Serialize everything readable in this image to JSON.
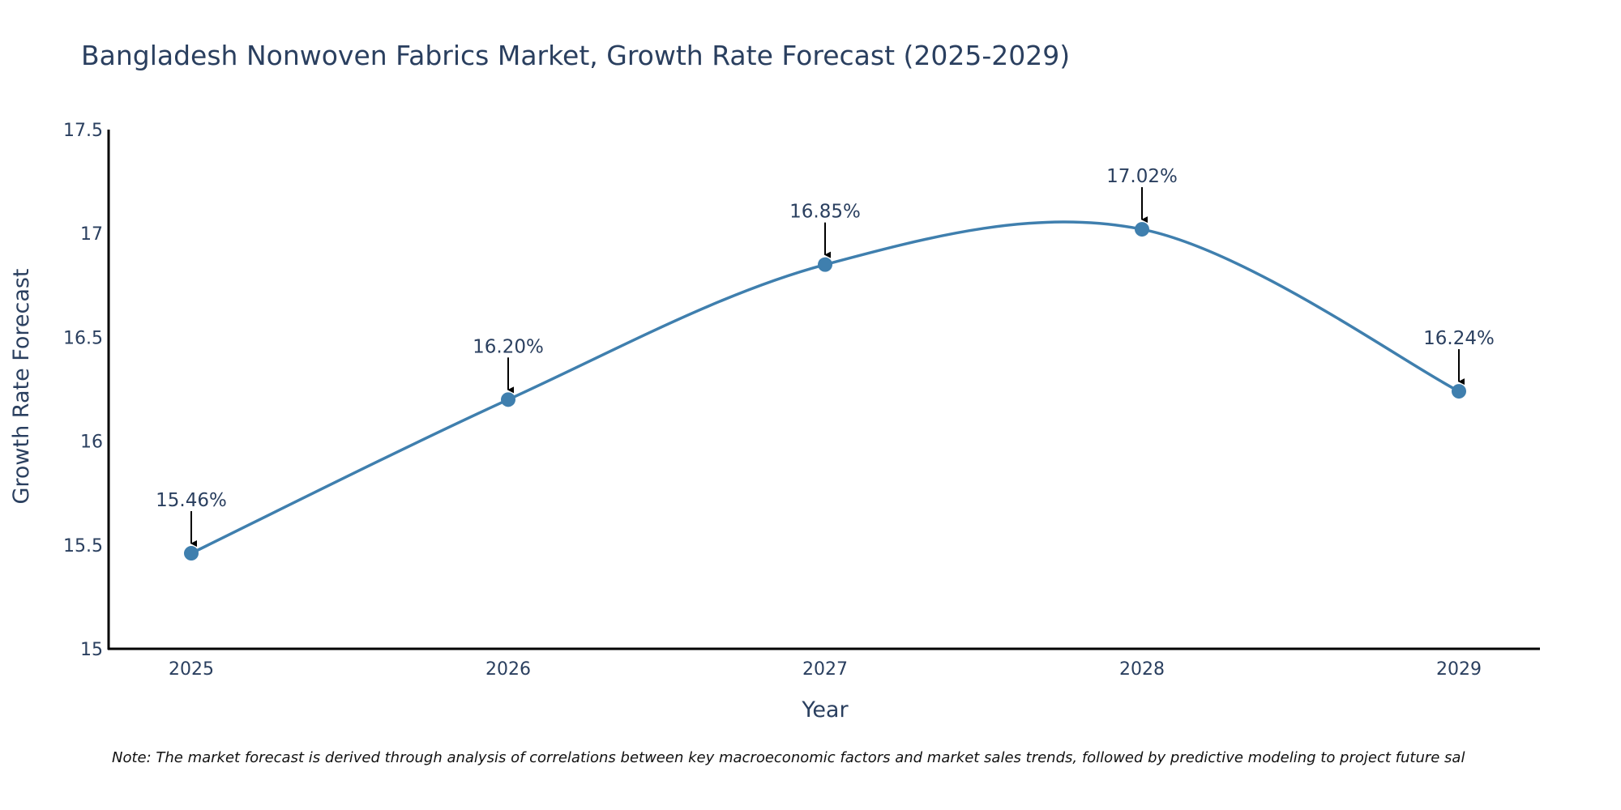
{
  "chart_data": {
    "type": "line",
    "title": "Bangladesh Nonwoven Fabrics Market, Growth Rate Forecast (2025-2029)",
    "xlabel": "Year",
    "ylabel": "Growth Rate Forecast",
    "categories": [
      "2025",
      "2026",
      "2027",
      "2028",
      "2029"
    ],
    "values": [
      15.46,
      16.2,
      16.85,
      17.02,
      16.24
    ],
    "data_labels": [
      "15.46%",
      "16.20%",
      "16.85%",
      "17.02%",
      "16.24%"
    ],
    "yticks": [
      "15",
      "15.5",
      "16",
      "16.5",
      "17",
      "17.5"
    ],
    "ylim": [
      15,
      17.5
    ],
    "line_shape": "spline",
    "grid": false,
    "legend": "none",
    "line_color": "#3f7fae",
    "marker_color": "#3f7fae",
    "arrow_color": "#000000",
    "note": "Note: The market forecast is derived through analysis of correlations between key macroeconomic factors and market sales trends, followed by predictive modeling to project future sal"
  }
}
